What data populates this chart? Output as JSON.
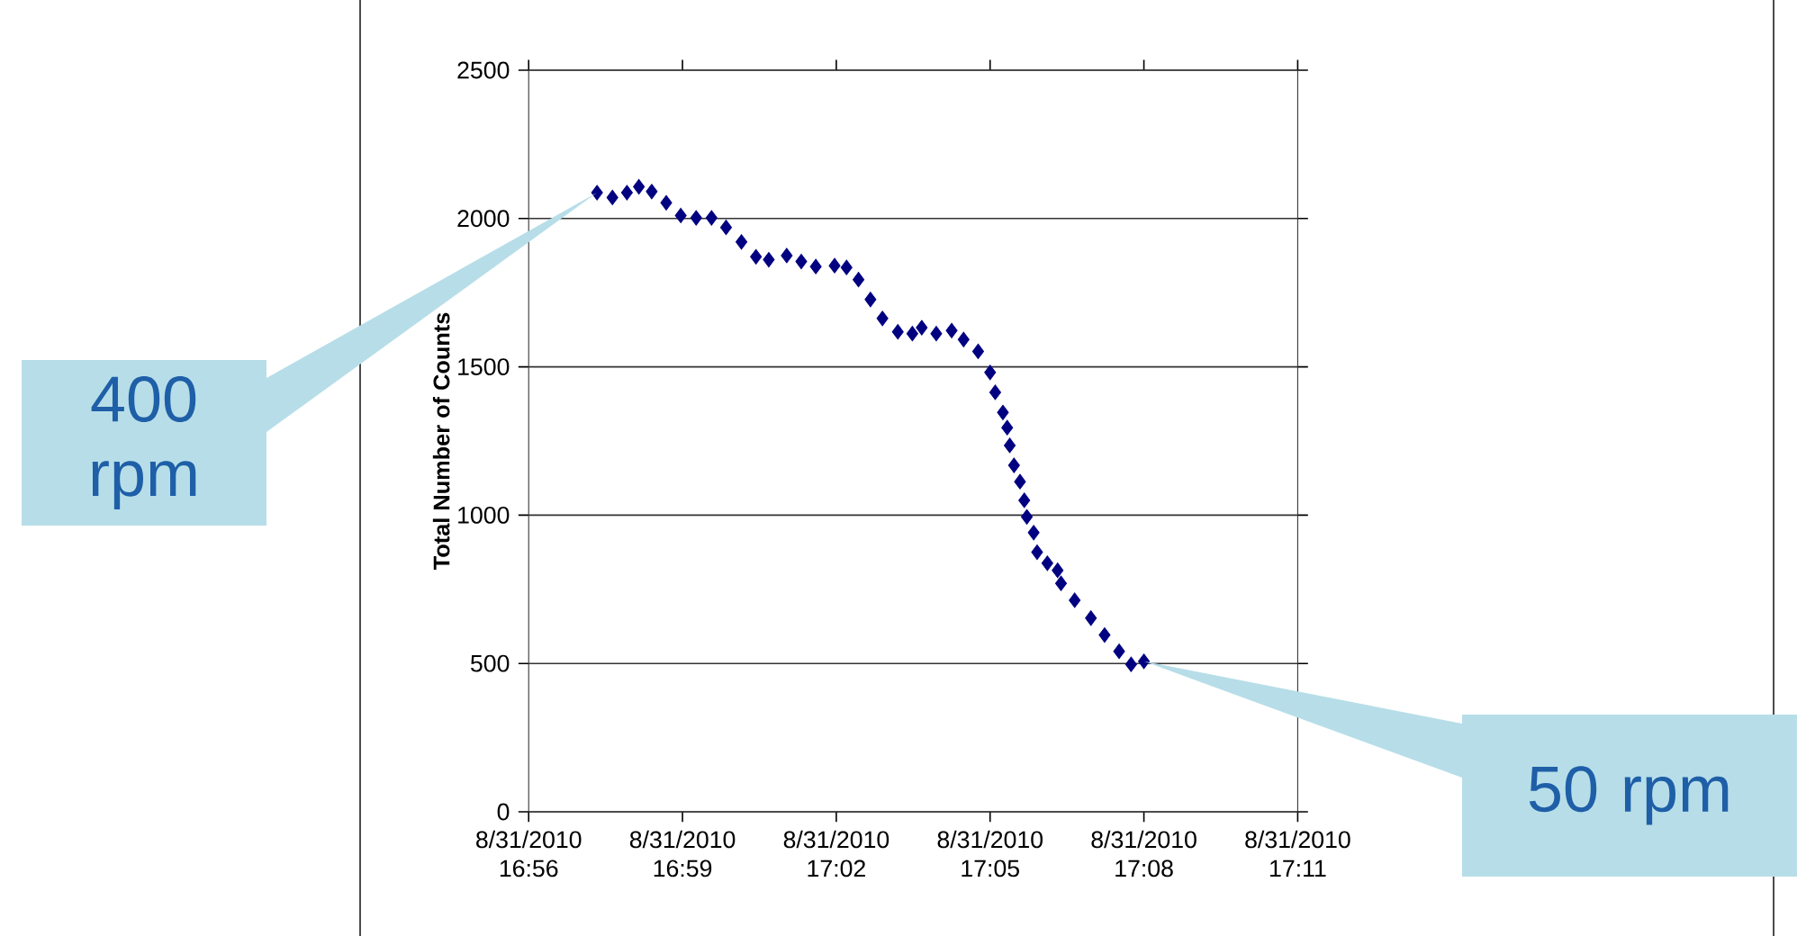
{
  "chart_data": {
    "type": "scatter",
    "ylabel": "Total Number of Counts",
    "color": "#000080",
    "marker": "diamond",
    "grid": "y",
    "x": [
      "2010-08-31T16:57:20",
      "2010-08-31T16:57:38",
      "2010-08-31T16:57:55",
      "2010-08-31T16:58:09",
      "2010-08-31T16:58:24",
      "2010-08-31T16:58:41",
      "2010-08-31T16:58:58",
      "2010-08-31T16:59:16",
      "2010-08-31T16:59:34",
      "2010-08-31T16:59:51",
      "2010-08-31T17:00:09",
      "2010-08-31T17:00:26",
      "2010-08-31T17:00:41",
      "2010-08-31T17:01:02",
      "2010-08-31T17:01:19",
      "2010-08-31T17:01:36",
      "2010-08-31T17:01:58",
      "2010-08-31T17:02:12",
      "2010-08-31T17:02:26",
      "2010-08-31T17:02:40",
      "2010-08-31T17:02:54",
      "2010-08-31T17:03:12",
      "2010-08-31T17:03:29",
      "2010-08-31T17:03:40",
      "2010-08-31T17:03:57",
      "2010-08-31T17:04:15",
      "2010-08-31T17:04:29",
      "2010-08-31T17:04:46",
      "2010-08-31T17:05:00",
      "2010-08-31T17:05:06",
      "2010-08-31T17:05:15",
      "2010-08-31T17:05:20",
      "2010-08-31T17:05:23",
      "2010-08-31T17:05:28",
      "2010-08-31T17:05:35",
      "2010-08-31T17:05:40",
      "2010-08-31T17:05:43",
      "2010-08-31T17:05:51",
      "2010-08-31T17:05:55",
      "2010-08-31T17:06:07",
      "2010-08-31T17:06:19",
      "2010-08-31T17:06:23",
      "2010-08-31T17:06:39",
      "2010-08-31T17:06:58",
      "2010-08-31T17:07:14",
      "2010-08-31T17:07:31",
      "2010-08-31T17:07:45",
      "2010-08-31T17:08:00"
    ],
    "values": [
      2087,
      2071,
      2087,
      2107,
      2091,
      2053,
      2010,
      2002,
      2002,
      1970,
      1921,
      1871,
      1861,
      1875,
      1855,
      1838,
      1841,
      1835,
      1794,
      1727,
      1663,
      1618,
      1612,
      1632,
      1612,
      1622,
      1592,
      1552,
      1481,
      1414,
      1346,
      1295,
      1235,
      1168,
      1113,
      1050,
      994,
      941,
      875,
      838,
      814,
      770,
      713,
      653,
      596,
      541,
      497,
      507
    ],
    "xlim": [
      "2010-08-31T16:56",
      "2010-08-31T17:11"
    ],
    "ylim": [
      0,
      2500
    ],
    "xticks": [
      {
        "value": "2010-08-31T16:56",
        "label": "8/31/2010 16:56"
      },
      {
        "value": "2010-08-31T16:59",
        "label": "8/31/2010 16:59"
      },
      {
        "value": "2010-08-31T17:02",
        "label": "8/31/2010 17:02"
      },
      {
        "value": "2010-08-31T17:05",
        "label": "8/31/2010 17:05"
      },
      {
        "value": "2010-08-31T17:08",
        "label": "8/31/2010 17:08"
      },
      {
        "value": "2010-08-31T17:11",
        "label": "8/31/2010 17:11"
      }
    ],
    "yticks": [
      0,
      500,
      1000,
      1500,
      2000,
      2500
    ],
    "annotations": [
      "400 rpm",
      "50 rpm"
    ]
  }
}
